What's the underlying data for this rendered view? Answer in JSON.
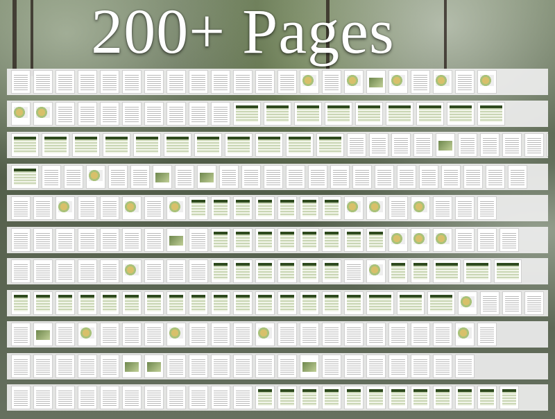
{
  "title": "200+ Pages",
  "rows": [
    "pppppppppppppmpmfmpmpm",
    "mmpppppppplllllllll",
    "lllllllllllppppfppppp",
    "lppmppfpfpppppppppppppp",
    "ppmppmpmtttttttmmpmppp",
    "pppppppfpttttttttmmmppp",
    "pppppmpppttttttpmttlll",
    "ttttttttttttttttlllmppp",
    "pfpmpppmpppmppppppppmp",
    "pppppffppppppfppppppp",
    "ppppppppppptttttttttttt"
  ]
}
